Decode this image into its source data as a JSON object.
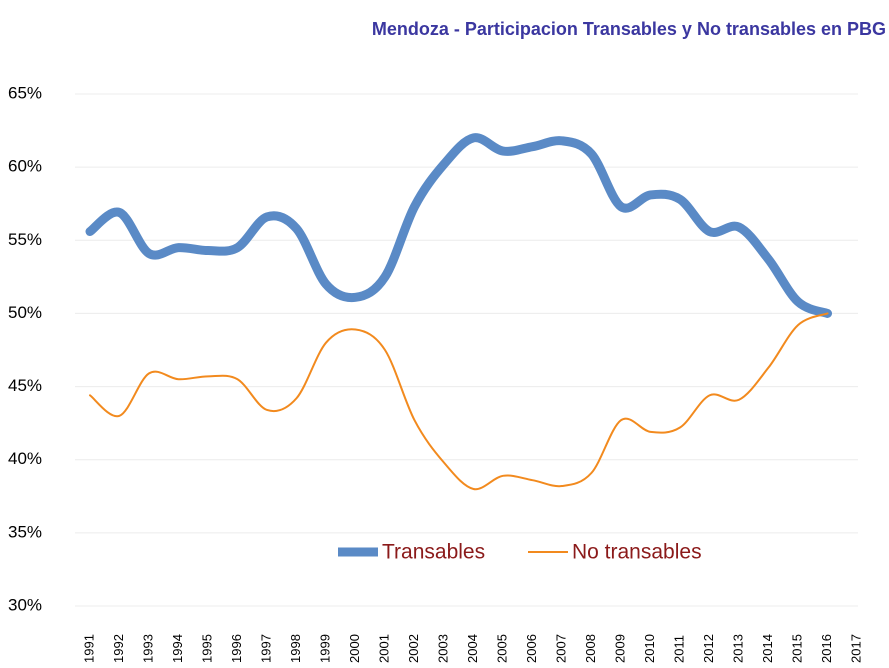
{
  "chart_data": {
    "type": "line",
    "title": "Mendoza - Participacion Transables y No transables en PBG",
    "categories": [
      "1991",
      "1992",
      "1993",
      "1994",
      "1995",
      "1996",
      "1997",
      "1998",
      "1999",
      "2000",
      "2001",
      "2002",
      "2003",
      "2004",
      "2005",
      "2006",
      "2007",
      "2008",
      "2009",
      "2010",
      "2011",
      "2012",
      "2013",
      "2014",
      "2015",
      "2016",
      "2017"
    ],
    "series": [
      {
        "name": "Transables",
        "color": "#5a8ac6",
        "values": [
          55.6,
          56.9,
          54.1,
          54.5,
          54.3,
          54.5,
          56.6,
          55.8,
          52.0,
          51.1,
          52.5,
          57.3,
          60.2,
          62.0,
          61.1,
          61.4,
          61.8,
          60.9,
          57.3,
          58.1,
          57.8,
          55.6,
          55.9,
          53.7,
          50.8,
          50.0,
          null
        ]
      },
      {
        "name": "No transables",
        "color": "#f28a1e",
        "values": [
          44.4,
          43.0,
          45.9,
          45.5,
          45.7,
          45.5,
          43.4,
          44.2,
          48.0,
          48.9,
          47.5,
          42.7,
          39.8,
          38.0,
          38.9,
          38.6,
          38.2,
          39.1,
          42.7,
          41.9,
          42.2,
          44.4,
          44.1,
          46.3,
          49.2,
          50.0,
          null
        ]
      }
    ],
    "ylim": [
      30,
      65
    ],
    "yticks": [
      {
        "value": 30,
        "label": "30%"
      },
      {
        "value": 35,
        "label": "35%"
      },
      {
        "value": 40,
        "label": "40%"
      },
      {
        "value": 45,
        "label": "45%"
      },
      {
        "value": 50,
        "label": "50%"
      },
      {
        "value": 55,
        "label": "55%"
      },
      {
        "value": 60,
        "label": "60%"
      },
      {
        "value": 65,
        "label": "65%"
      }
    ],
    "grid": true
  }
}
